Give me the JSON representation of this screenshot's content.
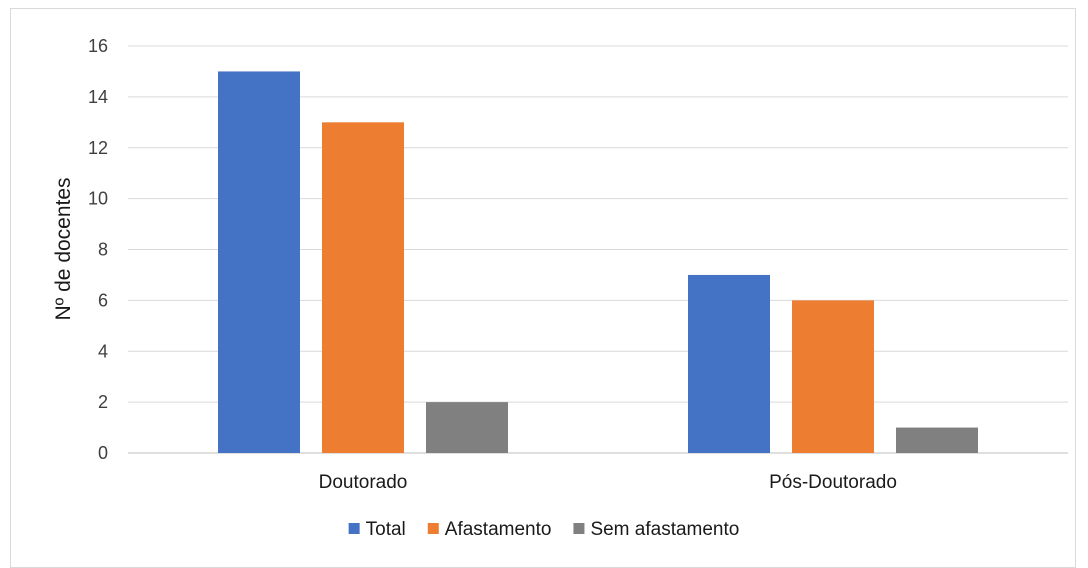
{
  "chart_data": {
    "type": "bar",
    "title": "",
    "xlabel": "",
    "ylabel": "Nº de docentes",
    "ylim": [
      0,
      16
    ],
    "yticks": [
      0,
      2,
      4,
      6,
      8,
      10,
      12,
      14,
      16
    ],
    "categories": [
      "Doutorado",
      "Pós-Doutorado"
    ],
    "series": [
      {
        "name": "Total",
        "values": [
          15,
          7
        ],
        "color": "#4472c4"
      },
      {
        "name": "Afastamento",
        "values": [
          13,
          6
        ],
        "color": "#ed7d31"
      },
      {
        "name": "Sem afastamento",
        "values": [
          2,
          1
        ],
        "color": "#808080"
      }
    ],
    "grid": true,
    "legend": "bottom"
  }
}
